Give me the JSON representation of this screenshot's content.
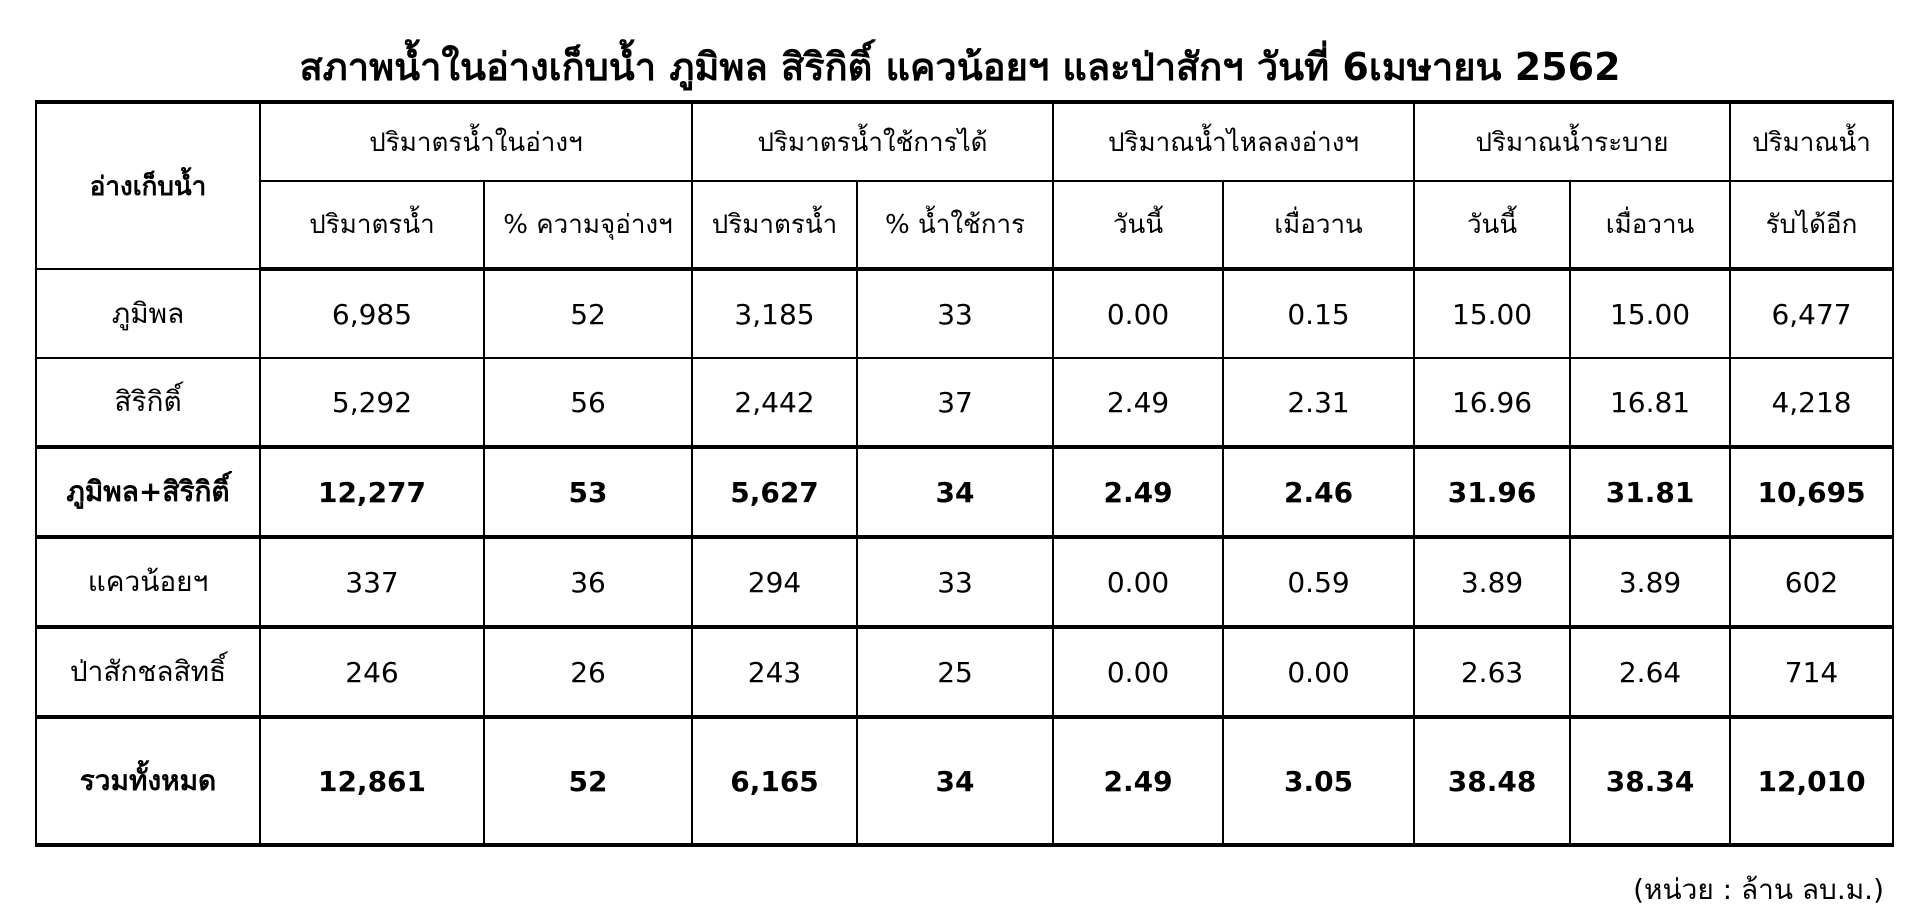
{
  "title": "สภาพน้ำในอ่างเก็บน้ำ ภูมิพล สิริกิติ์ แควน้อยฯ และป่าสักฯ วันที่ 6เมษายน 2562",
  "header": {
    "reservoir": "อ่างเก็บน้ำ",
    "groups": [
      "ปริมาตรน้ำในอ่างฯ",
      "ปริมาตรน้ำใช้การได้",
      "ปริมาณน้ำไหลลงอ่างฯ",
      "ปริมาณน้ำระบาย",
      "ปริมาณน้ำ"
    ],
    "sub": [
      "ปริมาตรน้ำ",
      "% ความจุอ่างฯ",
      "ปริมาตรน้ำ",
      "% น้ำใช้การ",
      "วันนี้",
      "เมื่อวาน",
      "วันนี้",
      "เมื่อวาน",
      "รับได้อีก"
    ]
  },
  "rows": [
    {
      "name": "ภูมิพล",
      "values": [
        "6,985",
        "52",
        "3,185",
        "33",
        "0.00",
        "0.15",
        "15.00",
        "15.00",
        "6,477"
      ]
    },
    {
      "name": "สิริกิติ์",
      "values": [
        "5,292",
        "56",
        "2,442",
        "37",
        "2.49",
        "2.31",
        "16.96",
        "16.81",
        "4,218"
      ]
    },
    {
      "name": "ภูมิพล+สิริกิติ์",
      "values": [
        "12,277",
        "53",
        "5,627",
        "34",
        "2.49",
        "2.46",
        "31.96",
        "31.81",
        "10,695"
      ]
    },
    {
      "name": "แควน้อยฯ",
      "values": [
        "337",
        "36",
        "294",
        "33",
        "0.00",
        "0.59",
        "3.89",
        "3.89",
        "602"
      ]
    },
    {
      "name": "ป่าสักชลสิทธิ์",
      "values": [
        "246",
        "26",
        "243",
        "25",
        "0.00",
        "0.00",
        "2.63",
        "2.64",
        "714"
      ]
    },
    {
      "name": "รวมทั้งหมด",
      "values": [
        "12,861",
        "52",
        "6,165",
        "34",
        "2.49",
        "3.05",
        "38.48",
        "38.34",
        "12,010"
      ]
    }
  ],
  "unit_note": "(หน่วย : ล้าน ลบ.ม.)"
}
